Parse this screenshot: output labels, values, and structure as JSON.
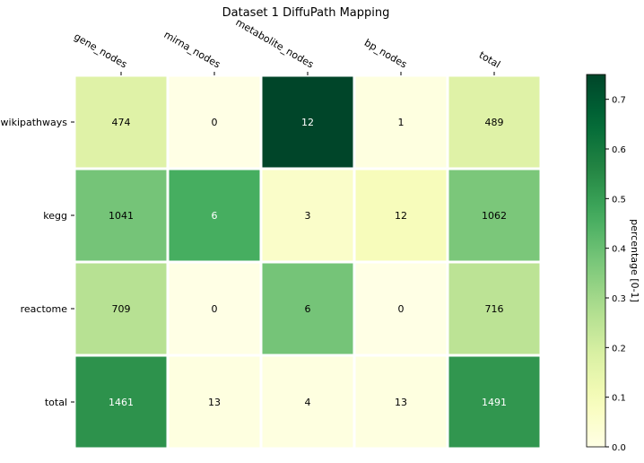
{
  "chart_data": {
    "type": "heatmap",
    "title": "Dataset 1 DiffuPath Mapping",
    "columns": [
      "gene_nodes",
      "mirna_nodes",
      "metabolite_nodes",
      "bp_nodes",
      "total"
    ],
    "rows": [
      "wikipathways",
      "kegg",
      "reactome",
      "total"
    ],
    "counts": [
      [
        474,
        0,
        12,
        1,
        489
      ],
      [
        1041,
        6,
        3,
        12,
        1062
      ],
      [
        709,
        0,
        6,
        0,
        716
      ],
      [
        1461,
        13,
        4,
        13,
        1491
      ]
    ],
    "percentages": [
      [
        0.17,
        0.0,
        0.75,
        0.01,
        0.17
      ],
      [
        0.38,
        0.46,
        0.06,
        0.09,
        0.37
      ],
      [
        0.26,
        0.0,
        0.38,
        0.0,
        0.25
      ],
      [
        0.53,
        0.01,
        0.01,
        0.01,
        0.52
      ]
    ],
    "colorbar": {
      "label": "percentage [0-1]",
      "range": [
        0,
        0.75
      ],
      "ticks": [
        "0.0",
        "0.1",
        "0.2",
        "0.3",
        "0.4",
        "0.5",
        "0.6",
        "0.7"
      ],
      "colormap": "YlGn"
    }
  }
}
